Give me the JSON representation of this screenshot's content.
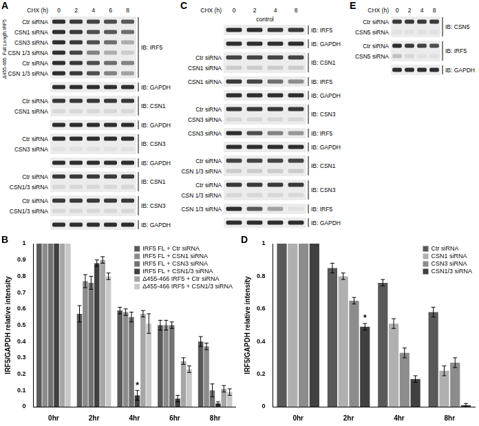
{
  "western_blots": [
    {
      "panel": "A",
      "header": "CHX (h)",
      "times": [
        0,
        2,
        4,
        6,
        8
      ],
      "blots": [
        {
          "ib": "IB: IRF5",
          "rows": [
            {
              "section": "Full Length IRF5",
              "label": "Ctr siRNA",
              "intensity": [
                0.9,
                0.85,
                0.8,
                0.75,
                0.7
              ]
            },
            {
              "section": "Full Length IRF5",
              "label": "CSN1 siRNA",
              "intensity": [
                0.9,
                0.85,
                0.75,
                0.7,
                0.6
              ]
            },
            {
              "section": "Full Length IRF5",
              "label": "CSN3 siRNA",
              "intensity": [
                0.9,
                0.85,
                0.75,
                0.6,
                0.3
              ]
            },
            {
              "section": "Full Length IRF5",
              "label": "CSN 1/3 siRNA",
              "intensity": [
                0.9,
                0.8,
                0.5,
                0.3,
                0.15
              ]
            },
            {
              "section": "Δ455-466",
              "label": "Ctr siRNA",
              "intensity": [
                0.9,
                0.85,
                0.75,
                0.6,
                0.5
              ]
            },
            {
              "section": "Δ455-466",
              "label": "CSN 1/3 siRNA",
              "intensity": [
                0.9,
                0.85,
                0.75,
                0.5,
                0.35
              ]
            }
          ]
        },
        {
          "ib": "IB: GAPDH",
          "rows": [
            {
              "intensity": [
                0.9,
                0.9,
                0.9,
                0.9,
                0.9
              ]
            }
          ]
        },
        {
          "ib": "IB: CSN1",
          "rows": [
            {
              "label": "Ctr siRNA",
              "intensity": [
                0.85,
                0.85,
                0.85,
                0.85,
                0.85
              ]
            },
            {
              "label": "CSN1 siRNA",
              "intensity": [
                0.1,
                0.1,
                0.1,
                0.1,
                0.1
              ]
            }
          ]
        },
        {
          "ib": "IB: GAPDH",
          "rows": [
            {
              "intensity": [
                0.9,
                0.9,
                0.9,
                0.9,
                0.9
              ]
            }
          ]
        },
        {
          "ib": "IB: CSN3",
          "rows": [
            {
              "label": "Ctr siRNA",
              "intensity": [
                0.9,
                0.9,
                0.9,
                0.9,
                0.9
              ]
            },
            {
              "label": "CSN3 siRNA",
              "intensity": [
                0.05,
                0.05,
                0.05,
                0.05,
                0.05
              ]
            }
          ]
        },
        {
          "ib": "IB: GAPDH",
          "rows": [
            {
              "intensity": [
                0.9,
                0.9,
                0.9,
                0.9,
                0.9
              ]
            }
          ]
        },
        {
          "ib": "IB: CSN1",
          "rows": [
            {
              "label": "Ctr siRNA",
              "intensity": [
                0.85,
                0.85,
                0.85,
                0.85,
                0.85
              ]
            },
            {
              "label": "CSN1/3 siRNA",
              "intensity": [
                0.1,
                0.1,
                0.1,
                0.1,
                0.1
              ]
            }
          ]
        },
        {
          "ib": "IB: CSN3",
          "rows": [
            {
              "label": "Ctr siRNA",
              "intensity": [
                0.85,
                0.85,
                0.85,
                0.85,
                0.85
              ]
            },
            {
              "label": "CSN1/3 siRNA",
              "intensity": [
                0.1,
                0.1,
                0.1,
                0.1,
                0.1
              ]
            }
          ]
        },
        {
          "ib": "IB: GAPDH",
          "rows": [
            {
              "intensity": [
                0.9,
                0.9,
                0.9,
                0.9,
                0.9
              ]
            }
          ]
        }
      ]
    },
    {
      "panel": "C",
      "header": "CHX (h)",
      "subheader": "control",
      "times": [
        0,
        2,
        4,
        8
      ],
      "blots": [
        {
          "ib": "IB: IRF5",
          "rows": [
            {
              "intensity": [
                0.9,
                0.9,
                0.85,
                0.85
              ]
            }
          ]
        },
        {
          "ib": "IB: GAPDH",
          "rows": [
            {
              "intensity": [
                0.9,
                0.9,
                0.9,
                0.9
              ]
            }
          ]
        },
        {
          "ib": "IB: CSN1",
          "rows": [
            {
              "label": "Ctr siRNA",
              "intensity": [
                0.8,
                0.8,
                0.8,
                0.8
              ]
            },
            {
              "label": "CSN1 siRNA",
              "intensity": [
                0.15,
                0.15,
                0.15,
                0.15
              ]
            }
          ]
        },
        {
          "ib": "IB: IRF5",
          "rows": [
            {
              "label": "CSN1 siRNA",
              "intensity": [
                0.85,
                0.8,
                0.6,
                0.45
              ]
            }
          ]
        },
        {
          "ib": "IB: GAPDH",
          "rows": [
            {
              "intensity": [
                0.9,
                0.9,
                0.9,
                0.9
              ]
            }
          ]
        },
        {
          "ib": "IB: CSN3",
          "rows": [
            {
              "label": "Ctr siRNA",
              "intensity": [
                0.85,
                0.85,
                0.85,
                0.85
              ]
            },
            {
              "label": "CSN3 siRNA",
              "intensity": [
                0.1,
                0.1,
                0.1,
                0.1
              ]
            }
          ]
        },
        {
          "ib": "IB: IRF5",
          "rows": [
            {
              "label": "CSN3 siRNA",
              "intensity": [
                0.9,
                0.75,
                0.5,
                0.4
              ]
            }
          ]
        },
        {
          "ib": "IB: GAPDH",
          "rows": [
            {
              "intensity": [
                0.9,
                0.9,
                0.9,
                0.9
              ]
            }
          ]
        },
        {
          "ib": "IB: CSN1",
          "rows": [
            {
              "label": "Ctr siRNA",
              "intensity": [
                0.8,
                0.8,
                0.8,
                0.8
              ]
            },
            {
              "label": "CSN 1/3 siRNA",
              "intensity": [
                0.15,
                0.15,
                0.15,
                0.15
              ]
            }
          ]
        },
        {
          "ib": "IB: CSN3",
          "rows": [
            {
              "label": "Ctr siRNA",
              "intensity": [
                0.85,
                0.85,
                0.85,
                0.85
              ]
            },
            {
              "label": "CSN 1/3 siRNA",
              "intensity": [
                0.1,
                0.1,
                0.1,
                0.1
              ]
            }
          ]
        },
        {
          "ib": "IB: IRF5",
          "rows": [
            {
              "label": "CSN 1/3 siRNA",
              "intensity": [
                0.9,
                0.7,
                0.35,
                0.05
              ]
            }
          ]
        },
        {
          "ib": "IB: GAPDH",
          "rows": [
            {
              "intensity": [
                0.9,
                0.9,
                0.9,
                0.9
              ]
            }
          ]
        }
      ]
    },
    {
      "panel": "E",
      "header": "CHX (h)",
      "times": [
        0,
        2,
        4,
        8
      ],
      "blots": [
        {
          "ib": "IB: CSN5",
          "rows": [
            {
              "label": "Ctr siRNA",
              "intensity": [
                0.85,
                0.85,
                0.85,
                0.85
              ]
            },
            {
              "label": "CSN5 siRNA",
              "intensity": [
                0.05,
                0.05,
                0.05,
                0.05
              ]
            }
          ]
        },
        {
          "ib": "IB: IRF5",
          "rows": [
            {
              "label": "Ctr siRNA",
              "intensity": [
                0.9,
                0.85,
                0.8,
                0.75
              ]
            },
            {
              "label": "CSN5 siRNA",
              "intensity": [
                0.2,
                0.1,
                0.05,
                0.05
              ]
            }
          ]
        },
        {
          "ib": "IB: GAPDH",
          "rows": [
            {
              "intensity": [
                0.9,
                0.9,
                0.9,
                0.9
              ]
            }
          ]
        }
      ]
    }
  ],
  "chart_data": [
    {
      "panel": "B",
      "type": "bar",
      "y_label": "IRF5/GAPDH relative intensity",
      "categories": [
        "0hr",
        "2hr",
        "4hr",
        "6hr",
        "8hr"
      ],
      "series": [
        {
          "name": "IRF5 FL + Ctr siRNA",
          "color": "#595959",
          "values": [
            1,
            0.57,
            0.59,
            0.5,
            0.4
          ],
          "errors": [
            0,
            0.05,
            0.02,
            0.03,
            0.03
          ]
        },
        {
          "name": "IRF5 FL + CSN1 siRNA",
          "color": "#8c8c8c",
          "values": [
            1,
            0.77,
            0.58,
            0.5,
            0.37
          ],
          "errors": [
            0,
            0.04,
            0.02,
            0.03,
            0.02
          ]
        },
        {
          "name": "IRF5 FL + CSN3 siRNA",
          "color": "#737373",
          "values": [
            1,
            0.76,
            0.55,
            0.5,
            0.1
          ],
          "errors": [
            0,
            0.04,
            0.03,
            0.02,
            0.04
          ]
        },
        {
          "name": "IRF5 FL + CSN1/3 siRNA",
          "color": "#404040",
          "values": [
            1,
            0.88,
            0.07,
            0.05,
            0.02
          ],
          "errors": [
            0,
            0.02,
            0.03,
            0.02,
            0.01
          ]
        },
        {
          "name": "Δ455-466 IRF5 + Ctr siRNA",
          "color": "#a6a6a6",
          "values": [
            1,
            0.9,
            0.57,
            0.28,
            0.11
          ],
          "errors": [
            0,
            0.02,
            0.02,
            0.02,
            0.02
          ]
        },
        {
          "name": "Δ455-466 IRF5 + CSN1/3 siRNA",
          "color": "#c8c8c8",
          "values": [
            1,
            0.8,
            0.51,
            0.23,
            0.09
          ],
          "errors": [
            0,
            0.02,
            0.06,
            0.02,
            0.02
          ]
        }
      ],
      "ylim": [
        0,
        1
      ],
      "yticks": [
        0,
        0.1,
        0.2,
        0.3,
        0.4,
        0.5,
        0.6,
        0.7,
        0.8,
        0.9,
        1
      ],
      "grid": false,
      "legend": "upper right",
      "annotations": [
        {
          "text": "*",
          "category": "4hr",
          "series": "IRF5 FL + CSN1/3 siRNA"
        }
      ]
    },
    {
      "panel": "D",
      "type": "bar",
      "y_label": "IRF5/GAPDH relative intensity",
      "categories": [
        "0hr",
        "2hr",
        "4hr",
        "8hr"
      ],
      "series": [
        {
          "name": "Ctr siRNA",
          "color": "#595959",
          "values": [
            1,
            0.85,
            0.76,
            0.58
          ],
          "errors": [
            0,
            0.03,
            0.02,
            0.03
          ]
        },
        {
          "name": "CSN1 siRNA",
          "color": "#b0b0b0",
          "values": [
            1,
            0.8,
            0.51,
            0.22
          ],
          "errors": [
            0,
            0.02,
            0.03,
            0.03
          ]
        },
        {
          "name": "CSN3 siRNA",
          "color": "#8c8c8c",
          "values": [
            1,
            0.65,
            0.33,
            0.27
          ],
          "errors": [
            0,
            0.02,
            0.03,
            0.03
          ]
        },
        {
          "name": "CSN1/3 siRNA",
          "color": "#404040",
          "values": [
            1,
            0.49,
            0.17,
            0.01
          ],
          "errors": [
            0,
            0.02,
            0.02,
            0.01
          ]
        }
      ],
      "ylim": [
        0,
        1
      ],
      "yticks": [
        0,
        0.2,
        0.4,
        0.6,
        0.8,
        1
      ],
      "grid": false,
      "legend": "upper right",
      "annotations": [
        {
          "text": "*",
          "category": "2hr",
          "series": "CSN1/3 siRNA"
        }
      ]
    }
  ]
}
